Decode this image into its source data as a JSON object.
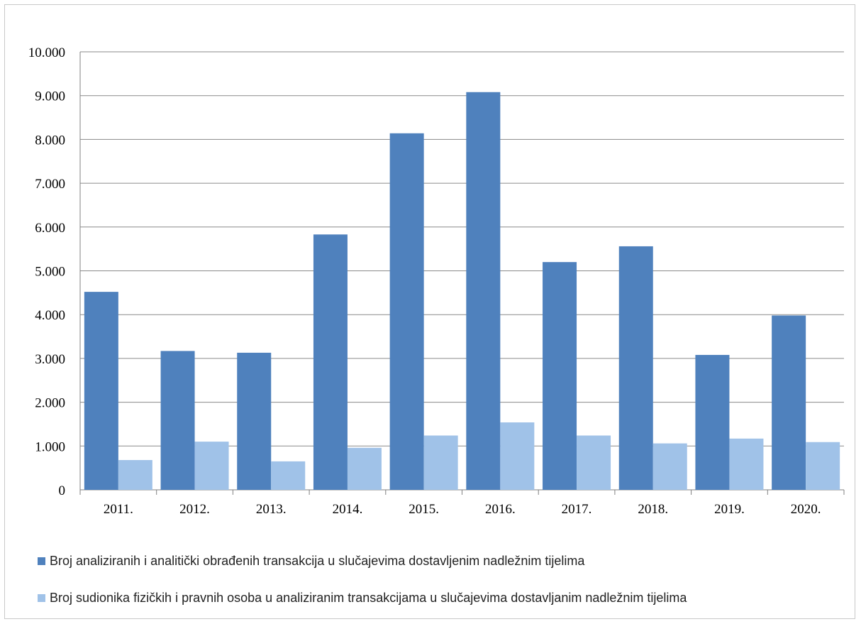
{
  "chart_data": {
    "type": "bar",
    "categories": [
      "2011.",
      "2012.",
      "2013.",
      "2014.",
      "2015.",
      "2016.",
      "2017.",
      "2018.",
      "2019.",
      "2020."
    ],
    "series": [
      {
        "name": "Broj analiziranih i analitički obrađenih transakcija u slučajevima dostavljenim nadležnim tijelima",
        "color": "#4f81bd",
        "values": [
          4520,
          3170,
          3130,
          5830,
          8140,
          9080,
          5200,
          5560,
          3080,
          3980
        ]
      },
      {
        "name": "Broj sudionika fizičkih i pravnih osoba u analiziranim transakcijama u slučajevima dostavljanim nadležnim tijelima",
        "color": "#a0c2e8",
        "values": [
          680,
          1100,
          650,
          960,
          1240,
          1540,
          1240,
          1060,
          1170,
          1090
        ]
      }
    ],
    "yticks": [
      "0",
      "1.000",
      "2.000",
      "3.000",
      "4.000",
      "5.000",
      "6.000",
      "7.000",
      "8.000",
      "9.000",
      "10.000"
    ],
    "ylim": [
      0,
      10000
    ],
    "grid": true,
    "legend_position": "bottom"
  }
}
